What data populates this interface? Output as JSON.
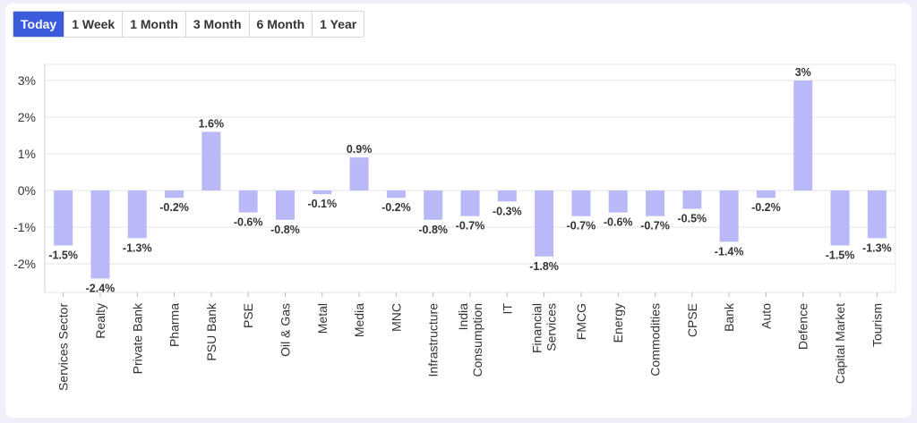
{
  "tabs": [
    "Today",
    "1 Week",
    "1 Month",
    "3 Month",
    "6 Month",
    "1 Year"
  ],
  "active_tab": 0,
  "colors": {
    "bar": "#b9b9f7",
    "accent": "#3b5bdb",
    "grid": "#e6e6e6"
  },
  "chart_data": {
    "type": "bar",
    "categories": [
      "Services Sector",
      "Realty",
      "Private Bank",
      "Pharma",
      "PSU Bank",
      "PSE",
      "Oil & Gas",
      "Metal",
      "Media",
      "MNC",
      "Infrastructure",
      [
        "India",
        "Consumption"
      ],
      "IT",
      [
        "Financial",
        "Services"
      ],
      "FMCG",
      "Energy",
      "Commodities",
      "CPSE",
      "Bank",
      "Auto",
      "Defence",
      "Capital Market",
      "Tourism"
    ],
    "values": [
      -1.5,
      -2.4,
      -1.3,
      -0.2,
      1.6,
      -0.6,
      -0.8,
      -0.1,
      0.9,
      -0.2,
      -0.8,
      -0.7,
      -0.3,
      -1.8,
      -0.7,
      -0.6,
      -0.7,
      -0.5,
      -1.4,
      -0.2,
      3,
      -1.5,
      -1.3
    ],
    "data_labels": [
      "-1.5%",
      "-2.4%",
      "-1.3%",
      "-0.2%",
      "1.6%",
      "-0.6%",
      "-0.8%",
      "-0.1%",
      "0.9%",
      "-0.2%",
      "-0.8%",
      "-0.7%",
      "-0.3%",
      "-1.8%",
      "-0.7%",
      "-0.6%",
      "-0.7%",
      "-0.5%",
      "-1.4%",
      "-0.2%",
      "3%",
      "-1.5%",
      "-1.3%"
    ],
    "yticks": [
      3,
      2,
      1,
      0,
      -1,
      -2
    ],
    "ytick_labels": [
      "3%",
      "2%",
      "1%",
      "0%",
      "-1%",
      "-2%"
    ],
    "ylim": [
      -2.8,
      3.4
    ],
    "grid": true
  }
}
